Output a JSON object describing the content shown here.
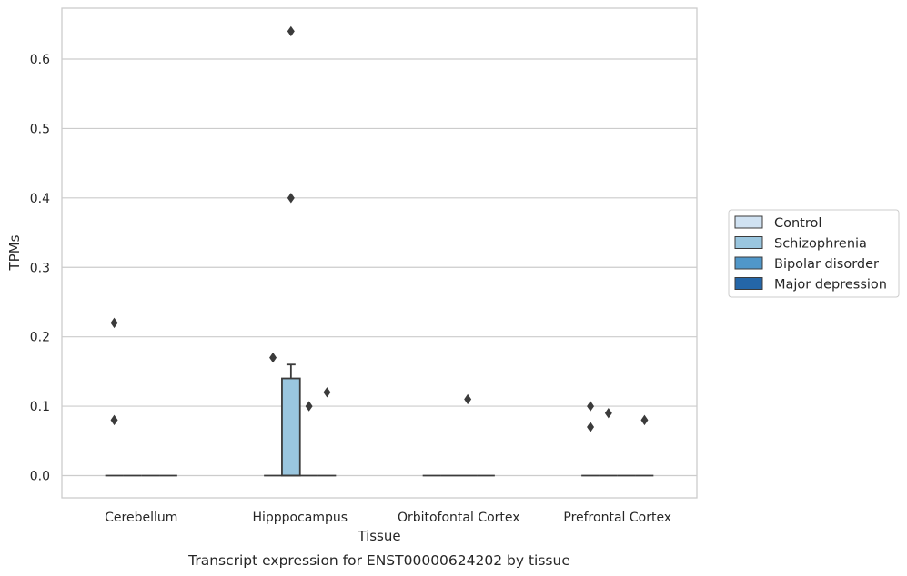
{
  "chart_data": {
    "type": "box",
    "title": "",
    "caption": "Transcript expression for ENST00000624202 by tissue",
    "xlabel": "Tissue",
    "ylabel": "TPMs",
    "ylim": [
      -0.032,
      0.672
    ],
    "yticks": [
      "0.0",
      "0.1",
      "0.2",
      "0.3",
      "0.4",
      "0.5",
      "0.6"
    ],
    "ytick_values": [
      0,
      0.1,
      0.2,
      0.3,
      0.4,
      0.5,
      0.6
    ],
    "grid": "horizontal",
    "legend_position": "right",
    "categories": [
      "Cerebellum",
      "Hipppocampus",
      "Orbitofontal Cortex",
      "Prefrontal Cortex"
    ],
    "series": [
      {
        "name": "Control",
        "color": "#d0e2f2",
        "boxes": [
          {
            "q1": 0,
            "median": 0,
            "q3": 0,
            "whisker_low": 0,
            "whisker_high": 0,
            "outliers": [
              0.22,
              0.08
            ]
          },
          {
            "q1": 0,
            "median": 0,
            "q3": 0,
            "whisker_low": 0,
            "whisker_high": 0,
            "outliers": [
              0.17
            ]
          },
          {
            "q1": 0,
            "median": 0,
            "q3": 0,
            "whisker_low": 0,
            "whisker_high": 0,
            "outliers": []
          },
          {
            "q1": 0,
            "median": 0,
            "q3": 0,
            "whisker_low": 0,
            "whisker_high": 0,
            "outliers": [
              0.1,
              0.07
            ]
          }
        ]
      },
      {
        "name": "Schizophrenia",
        "color": "#9ac6df",
        "boxes": [
          {
            "q1": 0,
            "median": 0,
            "q3": 0,
            "whisker_low": 0,
            "whisker_high": 0,
            "outliers": []
          },
          {
            "q1": 0,
            "median": 0,
            "q3": 0.14,
            "whisker_low": 0,
            "whisker_high": 0.16,
            "outliers": [
              0.64,
              0.4
            ]
          },
          {
            "q1": 0,
            "median": 0,
            "q3": 0,
            "whisker_low": 0,
            "whisker_high": 0,
            "outliers": []
          },
          {
            "q1": 0,
            "median": 0,
            "q3": 0,
            "whisker_low": 0,
            "whisker_high": 0,
            "outliers": [
              0.09
            ]
          }
        ]
      },
      {
        "name": "Bipolar disorder",
        "color": "#5097c9",
        "boxes": [
          {
            "q1": 0,
            "median": 0,
            "q3": 0,
            "whisker_low": 0,
            "whisker_high": 0,
            "outliers": []
          },
          {
            "q1": 0,
            "median": 0,
            "q3": 0,
            "whisker_low": 0,
            "whisker_high": 0,
            "outliers": [
              0.1
            ]
          },
          {
            "q1": 0,
            "median": 0,
            "q3": 0,
            "whisker_low": 0,
            "whisker_high": 0,
            "outliers": [
              0.11
            ]
          },
          {
            "q1": 0,
            "median": 0,
            "q3": 0,
            "whisker_low": 0,
            "whisker_high": 0,
            "outliers": []
          }
        ]
      },
      {
        "name": "Major depression",
        "color": "#2466a8",
        "boxes": [
          {
            "q1": 0,
            "median": 0,
            "q3": 0,
            "whisker_low": 0,
            "whisker_high": 0,
            "outliers": []
          },
          {
            "q1": 0,
            "median": 0,
            "q3": 0,
            "whisker_low": 0,
            "whisker_high": 0,
            "outliers": [
              0.12
            ]
          },
          {
            "q1": 0,
            "median": 0,
            "q3": 0,
            "whisker_low": 0,
            "whisker_high": 0,
            "outliers": []
          },
          {
            "q1": 0,
            "median": 0,
            "q3": 0,
            "whisker_low": 0,
            "whisker_high": 0,
            "outliers": [
              0.08
            ]
          }
        ]
      }
    ]
  }
}
